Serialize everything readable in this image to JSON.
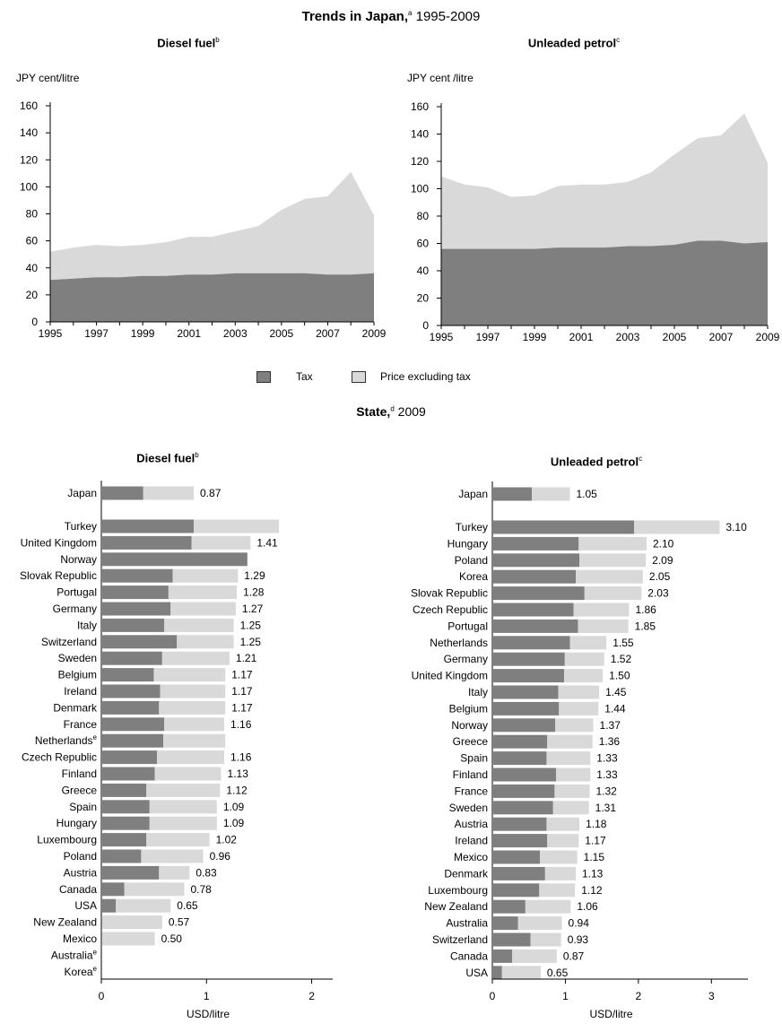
{
  "colors": {
    "tax": "#7f7f7f",
    "price_excl_tax": "#d9d9d9",
    "axis": "#000000"
  },
  "titles": {
    "main_title": "Trends in Japan,",
    "main_title_sup": "a",
    "main_title_years": " 1995-2009",
    "state_title": "State,",
    "state_title_sup": "d",
    "state_title_year": " 2009"
  },
  "legend": {
    "tax": "Tax",
    "price_excl_tax": "Price excluding tax"
  },
  "chart_data": [
    {
      "type": "area",
      "title": "Diesel fuel",
      "title_sup": "b",
      "ylabel": "JPY cent/litre",
      "xlabel": "",
      "ylim": [
        0,
        160
      ],
      "yticks": [
        "0",
        "20",
        "40",
        "60",
        "80",
        "100",
        "120",
        "140",
        "160"
      ],
      "xticks": [
        "1995",
        "1997",
        "1999",
        "2001",
        "2003",
        "2005",
        "2007",
        "2009"
      ],
      "stacked": true,
      "x": [
        1995,
        1996,
        1997,
        1998,
        1999,
        2000,
        2001,
        2002,
        2003,
        2004,
        2005,
        2006,
        2007,
        2008,
        2009
      ],
      "series": [
        {
          "name": "Tax",
          "values": [
            31,
            32,
            33,
            33,
            34,
            34,
            35,
            35,
            36,
            36,
            36,
            36,
            35,
            35,
            36
          ]
        },
        {
          "name": "Price excluding tax",
          "values": [
            21,
            23,
            24,
            23,
            23,
            25,
            28,
            28,
            31,
            35,
            47,
            55,
            58,
            76,
            43
          ]
        }
      ]
    },
    {
      "type": "area",
      "title": "Unleaded petrol",
      "title_sup": "c",
      "ylabel": "JPY cent /litre",
      "xlabel": "",
      "ylim": [
        0,
        160
      ],
      "yticks": [
        "0",
        "20",
        "40",
        "60",
        "80",
        "100",
        "120",
        "140",
        "160"
      ],
      "xticks": [
        "1995",
        "1997",
        "1999",
        "2001",
        "2003",
        "2005",
        "2007",
        "2009"
      ],
      "stacked": true,
      "x": [
        1995,
        1996,
        1997,
        1998,
        1999,
        2000,
        2001,
        2002,
        2003,
        2004,
        2005,
        2006,
        2007,
        2008,
        2009
      ],
      "series": [
        {
          "name": "Tax",
          "values": [
            56,
            56,
            56,
            56,
            56,
            57,
            57,
            57,
            58,
            58,
            59,
            62,
            62,
            60,
            61
          ]
        },
        {
          "name": "Price excluding tax",
          "values": [
            53,
            47,
            45,
            38,
            39,
            45,
            46,
            46,
            47,
            54,
            66,
            75,
            77,
            95,
            58
          ]
        }
      ]
    },
    {
      "type": "bar",
      "orientation": "horizontal",
      "stacked": true,
      "title": "Diesel fuel",
      "title_sup": "b",
      "xlabel": "USD/litre",
      "xlim": [
        0,
        2.2
      ],
      "xticks": [
        "0",
        "1",
        "2"
      ],
      "categories": [
        {
          "name": "Japan",
          "sup": ""
        },
        {
          "name": "Turkey",
          "sup": ""
        },
        {
          "name": "United Kingdom",
          "sup": ""
        },
        {
          "name": "Norway",
          "sup": ""
        },
        {
          "name": "Slovak Republic",
          "sup": ""
        },
        {
          "name": "Portugal",
          "sup": ""
        },
        {
          "name": "Germany",
          "sup": ""
        },
        {
          "name": "Italy",
          "sup": ""
        },
        {
          "name": "Switzerland",
          "sup": ""
        },
        {
          "name": "Sweden",
          "sup": ""
        },
        {
          "name": "Belgium",
          "sup": ""
        },
        {
          "name": "Ireland",
          "sup": ""
        },
        {
          "name": "Denmark",
          "sup": ""
        },
        {
          "name": "France",
          "sup": ""
        },
        {
          "name": "Netherlands",
          "sup": "e"
        },
        {
          "name": "Czech Republic",
          "sup": ""
        },
        {
          "name": "Finland",
          "sup": ""
        },
        {
          "name": "Greece",
          "sup": ""
        },
        {
          "name": "Spain",
          "sup": ""
        },
        {
          "name": "Hungary",
          "sup": ""
        },
        {
          "name": "Luxembourg",
          "sup": ""
        },
        {
          "name": "Poland",
          "sup": ""
        },
        {
          "name": "Austria",
          "sup": ""
        },
        {
          "name": "Canada",
          "sup": ""
        },
        {
          "name": "USA",
          "sup": ""
        },
        {
          "name": "New Zealand",
          "sup": ""
        },
        {
          "name": "Mexico",
          "sup": ""
        },
        {
          "name": "Australia",
          "sup": "e"
        },
        {
          "name": "Korea",
          "sup": "e"
        }
      ],
      "series": [
        {
          "name": "Tax",
          "values": [
            0.39,
            0.87,
            0.85,
            1.38,
            0.67,
            0.63,
            0.65,
            0.59,
            0.71,
            0.57,
            0.49,
            0.55,
            0.54,
            0.59,
            0.58,
            0.52,
            0.5,
            0.42,
            0.45,
            0.45,
            0.42,
            0.37,
            0.54,
            0.21,
            0.13,
            0.0,
            0.0,
            0,
            0
          ]
        },
        {
          "name": "Price excluding tax",
          "values": [
            0.48,
            0.81,
            0.56,
            0.0,
            0.62,
            0.65,
            0.62,
            0.66,
            0.54,
            0.64,
            0.68,
            0.62,
            0.63,
            0.57,
            0.59,
            0.64,
            0.63,
            0.7,
            0.64,
            0.64,
            0.6,
            0.59,
            0.29,
            0.57,
            0.52,
            0.57,
            0.5,
            0,
            0
          ]
        }
      ],
      "labels": [
        "0.87",
        "",
        "1.41",
        "",
        "1.29",
        "1.28",
        "1.27",
        "1.25",
        "1.25",
        "1.21",
        "1.17",
        "1.17",
        "1.17",
        "1.16",
        "",
        "1.16",
        "1.13",
        "1.12",
        "1.09",
        "1.09",
        "1.02",
        "0.96",
        "0.83",
        "0.78",
        "0.65",
        "0.57",
        "0.50",
        "",
        ""
      ]
    },
    {
      "type": "bar",
      "orientation": "horizontal",
      "stacked": true,
      "title": "Unleaded petrol",
      "title_sup": "c",
      "xlabel": "USD/litre",
      "xlim": [
        0,
        3.5
      ],
      "xticks": [
        "0",
        "1",
        "2",
        "3"
      ],
      "categories": [
        {
          "name": "Japan",
          "sup": ""
        },
        {
          "name": "Turkey",
          "sup": ""
        },
        {
          "name": "Hungary",
          "sup": ""
        },
        {
          "name": "Poland",
          "sup": ""
        },
        {
          "name": "Korea",
          "sup": ""
        },
        {
          "name": "Slovak Republic",
          "sup": ""
        },
        {
          "name": "Czech Republic",
          "sup": ""
        },
        {
          "name": "Portugal",
          "sup": ""
        },
        {
          "name": "Netherlands",
          "sup": ""
        },
        {
          "name": "Germany",
          "sup": ""
        },
        {
          "name": "United Kingdom",
          "sup": ""
        },
        {
          "name": "Italy",
          "sup": ""
        },
        {
          "name": "Belgium",
          "sup": ""
        },
        {
          "name": "Norway",
          "sup": ""
        },
        {
          "name": "Greece",
          "sup": ""
        },
        {
          "name": "Spain",
          "sup": ""
        },
        {
          "name": "Finland",
          "sup": ""
        },
        {
          "name": "France",
          "sup": ""
        },
        {
          "name": "Sweden",
          "sup": ""
        },
        {
          "name": "Austria",
          "sup": ""
        },
        {
          "name": "Ireland",
          "sup": ""
        },
        {
          "name": "Mexico",
          "sup": ""
        },
        {
          "name": "Denmark",
          "sup": ""
        },
        {
          "name": "Luxembourg",
          "sup": ""
        },
        {
          "name": "New Zealand",
          "sup": ""
        },
        {
          "name": "Australia",
          "sup": ""
        },
        {
          "name": "Switzerland",
          "sup": ""
        },
        {
          "name": "Canada",
          "sup": ""
        },
        {
          "name": "USA",
          "sup": ""
        }
      ],
      "series": [
        {
          "name": "Tax",
          "values": [
            0.53,
            1.93,
            1.17,
            1.18,
            1.13,
            1.25,
            1.1,
            1.16,
            1.05,
            0.98,
            0.97,
            0.89,
            0.9,
            0.85,
            0.74,
            0.73,
            0.86,
            0.84,
            0.82,
            0.73,
            0.74,
            0.64,
            0.71,
            0.63,
            0.44,
            0.34,
            0.51,
            0.26,
            0.12
          ]
        },
        {
          "name": "Price excluding tax",
          "values": [
            0.52,
            1.17,
            0.93,
            0.91,
            0.92,
            0.78,
            0.76,
            0.69,
            0.5,
            0.54,
            0.53,
            0.56,
            0.54,
            0.52,
            0.62,
            0.6,
            0.47,
            0.48,
            0.49,
            0.45,
            0.43,
            0.51,
            0.42,
            0.49,
            0.62,
            0.6,
            0.42,
            0.61,
            0.53
          ]
        }
      ],
      "labels": [
        "1.05",
        "3.10",
        "2.10",
        "2.09",
        "2.05",
        "2.03",
        "1.86",
        "1.85",
        "1.55",
        "1.52",
        "1.50",
        "1.45",
        "1.44",
        "1.37",
        "1.36",
        "1.33",
        "1.33",
        "1.32",
        "1.31",
        "1.18",
        "1.17",
        "1.15",
        "1.13",
        "1.12",
        "1.06",
        "0.94",
        "0.93",
        "0.87",
        "0.65"
      ]
    }
  ]
}
